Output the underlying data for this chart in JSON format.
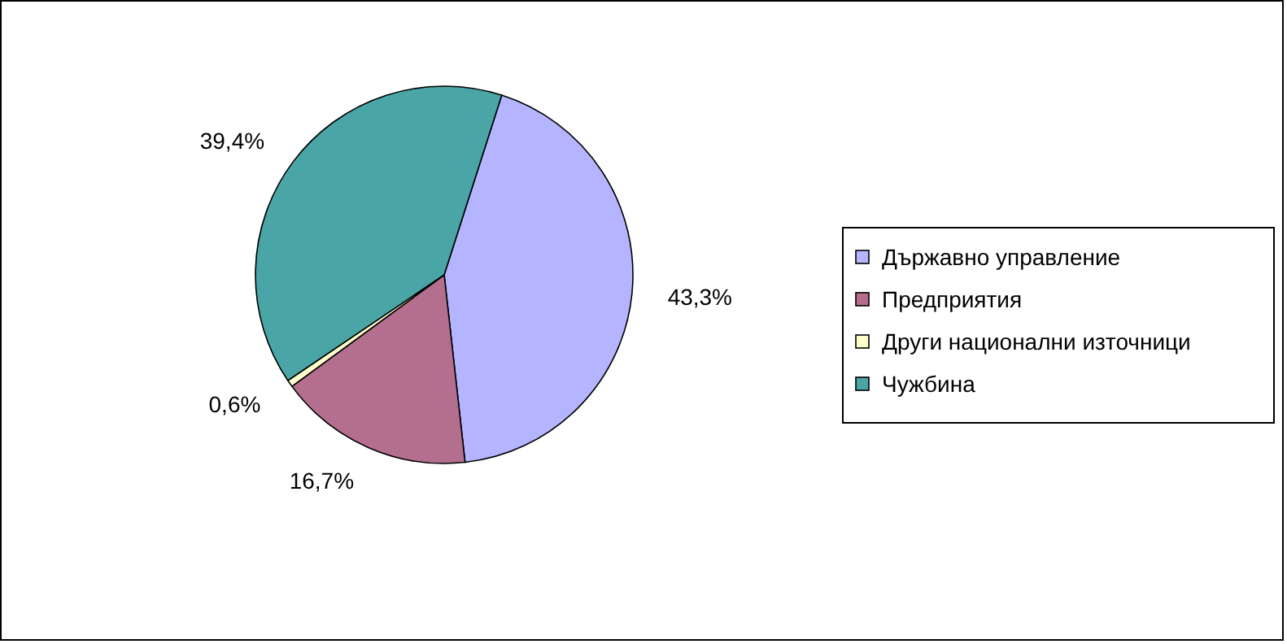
{
  "chart_data": {
    "type": "pie",
    "categories": [
      "Държавно управление",
      "Предприятия",
      "Други национални източници",
      "Чужбина"
    ],
    "values": [
      43.3,
      16.7,
      0.6,
      39.4
    ],
    "colors": [
      "#b4b4ff",
      "#b46e8e",
      "#ffffcc",
      "#4aa6a6"
    ],
    "value_labels": [
      "43,3%",
      "16,7%",
      "0,6%",
      "39,4%"
    ],
    "legend": "right"
  }
}
